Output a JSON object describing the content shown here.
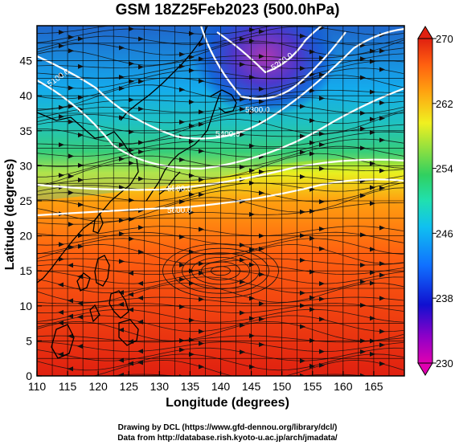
{
  "title": "GSM 18Z25Feb2023 (500.0hPa)",
  "xaxis": {
    "label": "Longitude (degrees)",
    "ticks": [
      110,
      115,
      120,
      125,
      130,
      135,
      140,
      145,
      150,
      155,
      160,
      165
    ],
    "range": [
      110,
      170
    ]
  },
  "yaxis": {
    "label": "Latitude  (degrees)",
    "ticks": [
      0,
      5,
      10,
      15,
      20,
      25,
      30,
      35,
      40,
      45
    ],
    "range": [
      0,
      50
    ]
  },
  "colorbar": {
    "ticks": [
      230,
      238,
      246,
      254,
      262,
      270
    ],
    "range": [
      230,
      270
    ],
    "palette": [
      "#e000b0",
      "#7000d0",
      "#1010d0",
      "#1060ff",
      "#10b0ff",
      "#20e0c0",
      "#30d060",
      "#80e040",
      "#f0f020",
      "#ffb010",
      "#ff7010",
      "#f04010",
      "#e02010"
    ]
  },
  "contours": [
    {
      "label": "5100.0"
    },
    {
      "label": "5200.0"
    },
    {
      "label": "5300.0"
    },
    {
      "label": "5400.0"
    },
    {
      "label": "5500.0"
    },
    {
      "label": "5600.0"
    },
    {
      "label": "5700.0"
    },
    {
      "label": "5800.0"
    }
  ],
  "credits": {
    "line1": "Drawing by DCL (https://www.gfd-dennou.org/library/dcl/)",
    "line2": "Data from http://database.rish.kyoto-u.ac.jp/arch/jmadata/"
  }
}
